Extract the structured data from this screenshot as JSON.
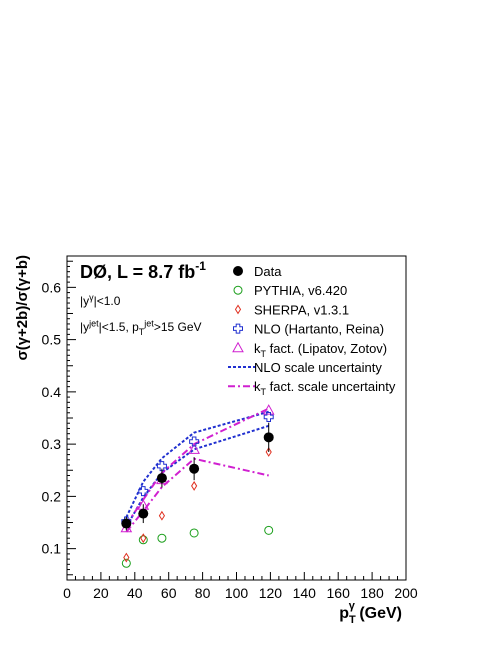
{
  "chart_data": {
    "type": "scatter",
    "experiment_label": "DØ, L = 8.7 fb",
    "experiment_label_sup": "-1",
    "cuts": [
      {
        "parts": [
          {
            "t": "|y"
          },
          {
            "t": "γ",
            "pos": "sup"
          },
          {
            "t": "|<1.0"
          }
        ]
      },
      {
        "parts": [
          {
            "t": "|y"
          },
          {
            "t": "jet",
            "pos": "sup"
          },
          {
            "t": "|<1.5, p"
          },
          {
            "t": "T",
            "pos": "sub"
          },
          {
            "t": "jet",
            "pos": "sup"
          },
          {
            "t": ">15 GeV"
          }
        ]
      }
    ],
    "ylabel": "σ(γ+2b)/σ(γ+b)",
    "xlabel_main": "p",
    "xlabel_sub": "T",
    "xlabel_sup": "γ",
    "xlabel_unit": " (GeV)",
    "xlim": [
      0,
      200
    ],
    "ylim": [
      0.04,
      0.66
    ],
    "xticks": [
      0,
      20,
      40,
      60,
      80,
      100,
      120,
      140,
      160,
      180,
      200
    ],
    "yticks": [
      0.1,
      0.2,
      0.3,
      0.4,
      0.5,
      0.6
    ],
    "grid": false,
    "legend_position": "top-right",
    "series": [
      {
        "name": "Data",
        "marker": "filled-circle",
        "color": "#000000",
        "x": [
          35,
          45,
          56,
          75,
          119
        ],
        "y": [
          0.148,
          0.167,
          0.235,
          0.253,
          0.313
        ],
        "yerr": [
          0.013,
          0.018,
          0.018,
          0.022,
          0.028
        ]
      },
      {
        "name": "PYTHIA, v6.420",
        "marker": "open-circle",
        "color": "#1a9e1a",
        "x": [
          35,
          45,
          56,
          75,
          119
        ],
        "y": [
          0.072,
          0.117,
          0.12,
          0.13,
          0.135
        ]
      },
      {
        "name": "SHERPA, v1.3.1",
        "marker": "open-diamond",
        "color": "#e03020",
        "x": [
          35,
          45,
          56,
          75,
          119
        ],
        "y": [
          0.083,
          0.12,
          0.163,
          0.22,
          0.285
        ]
      },
      {
        "name": "NLO (Hartanto, Reina)",
        "marker": "open-cross",
        "color": "#2030d0",
        "x": [
          35,
          45,
          56,
          75,
          119
        ],
        "y": [
          0.152,
          0.21,
          0.258,
          0.305,
          0.352
        ]
      },
      {
        "name": "k",
        "name_sub": "T",
        "name_rest": " fact. (Lipatov, Zotov)",
        "marker": "open-triangle",
        "color": "#d020d0",
        "x": [
          35,
          45,
          56,
          75,
          119
        ],
        "y": [
          0.14,
          0.183,
          0.232,
          0.29,
          0.365
        ]
      },
      {
        "name": "NLO scale uncertainty",
        "marker": "dashed-band",
        "color": "#2030d0",
        "x": [
          35,
          45,
          56,
          75,
          119
        ],
        "upper": [
          0.16,
          0.228,
          0.273,
          0.322,
          0.362
        ],
        "lower": [
          0.142,
          0.198,
          0.245,
          0.29,
          0.335
        ]
      },
      {
        "name": "k",
        "name_sub": "T",
        "name_rest": " fact. scale uncertainty",
        "marker": "dashdot-band",
        "color": "#d020d0",
        "x": [
          35,
          45,
          56,
          75,
          119
        ],
        "upper": [
          0.146,
          0.194,
          0.245,
          0.3,
          0.368
        ],
        "lower": [
          0.132,
          0.172,
          0.218,
          0.272,
          0.24
        ]
      }
    ]
  }
}
